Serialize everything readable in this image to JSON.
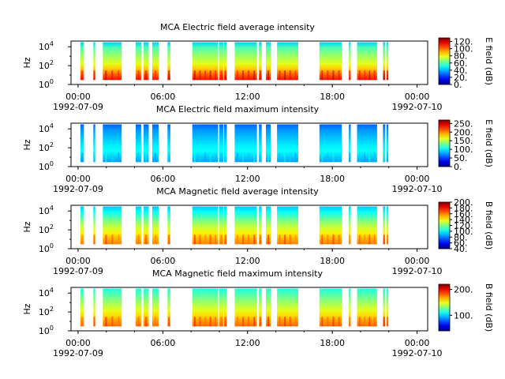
{
  "chart_data": [
    {
      "type": "heatmap",
      "title": "MCA  Electric field average intensity",
      "ylabel": "Hz",
      "y_scale": "log",
      "ylim": [
        1,
        40000
      ],
      "yticks": [
        {
          "base": "10",
          "exp": "0"
        },
        {
          "base": "10",
          "exp": "2"
        },
        {
          "base": "10",
          "exp": "4"
        }
      ],
      "x_range": [
        "1992-07-09 00:00",
        "1992-07-10 00:00"
      ],
      "xticks": [
        "00:00",
        "06:00",
        "12:00",
        "18:00",
        "00:00"
      ],
      "xtick_dates": [
        "1992-07-09",
        "1992-07-10"
      ],
      "colorbar": {
        "label": "E field (dB)",
        "range": [
          0,
          130
        ],
        "ticks": [
          "0.",
          "20.",
          "40.",
          "60.",
          "80.",
          "100.",
          "120."
        ],
        "colormap": "jet"
      },
      "style": "average_electric"
    },
    {
      "type": "heatmap",
      "title": "MCA  Electric field maximum intensity",
      "ylabel": "Hz",
      "y_scale": "log",
      "ylim": [
        1,
        40000
      ],
      "yticks": [
        {
          "base": "10",
          "exp": "0"
        },
        {
          "base": "10",
          "exp": "2"
        },
        {
          "base": "10",
          "exp": "4"
        }
      ],
      "x_range": [
        "1992-07-09 00:00",
        "1992-07-10 00:00"
      ],
      "xticks": [
        "00:00",
        "06:00",
        "12:00",
        "18:00",
        "00:00"
      ],
      "xtick_dates": [
        "1992-07-09",
        "1992-07-10"
      ],
      "colorbar": {
        "label": "E field (dB)",
        "range": [
          0,
          270
        ],
        "ticks": [
          "0.",
          "50.",
          "100.",
          "150.",
          "200.",
          "250."
        ],
        "colormap": "jet"
      },
      "style": "maximum_electric"
    },
    {
      "type": "heatmap",
      "title": "MCA  Magnetic field average intensity",
      "ylabel": "Hz",
      "y_scale": "log",
      "ylim": [
        1,
        40000
      ],
      "yticks": [
        {
          "base": "10",
          "exp": "0"
        },
        {
          "base": "10",
          "exp": "2"
        },
        {
          "base": "10",
          "exp": "4"
        }
      ],
      "x_range": [
        "1992-07-09 00:00",
        "1992-07-10 00:00"
      ],
      "xticks": [
        "00:00",
        "06:00",
        "12:00",
        "18:00",
        "00:00"
      ],
      "xtick_dates": [
        "1992-07-09",
        "1992-07-10"
      ],
      "colorbar": {
        "label": "B field (dB)",
        "range": [
          40,
          200
        ],
        "ticks": [
          "40.",
          "60.",
          "80.",
          "100.",
          "120.",
          "140.",
          "160.",
          "180.",
          "200."
        ],
        "colormap": "jet"
      },
      "style": "average_magnetic"
    },
    {
      "type": "heatmap",
      "title": "MCA  Magnetic field maximum intensity",
      "ylabel": "Hz",
      "y_scale": "log",
      "ylim": [
        1,
        40000
      ],
      "yticks": [
        {
          "base": "10",
          "exp": "0"
        },
        {
          "base": "10",
          "exp": "2"
        },
        {
          "base": "10",
          "exp": "4"
        }
      ],
      "x_range": [
        "1992-07-09 00:00",
        "1992-07-10 00:00"
      ],
      "xticks": [
        "00:00",
        "06:00",
        "12:00",
        "18:00",
        "00:00"
      ],
      "xtick_dates": [
        "1992-07-09",
        "1992-07-10"
      ],
      "colorbar": {
        "label": "B field (dB)",
        "range": [
          40,
          220
        ],
        "ticks": [
          "100.",
          "200."
        ],
        "colormap": "jet"
      },
      "style": "maximum_magnetic"
    }
  ],
  "data_segments_utc": [
    [
      "00:10",
      "00:25"
    ],
    [
      "01:05",
      "01:13"
    ],
    [
      "01:45",
      "03:05"
    ],
    [
      "04:05",
      "04:28"
    ],
    [
      "04:38",
      "05:00"
    ],
    [
      "05:15",
      "05:42"
    ],
    [
      "06:20",
      "06:32"
    ],
    [
      "08:05",
      "09:55"
    ],
    [
      "10:00",
      "10:17"
    ],
    [
      "10:20",
      "10:32"
    ],
    [
      "11:05",
      "12:40"
    ],
    [
      "12:48",
      "13:00"
    ],
    [
      "13:18",
      "13:38"
    ],
    [
      "14:05",
      "15:35"
    ],
    [
      "17:05",
      "18:40"
    ],
    [
      "19:10",
      "19:18"
    ],
    [
      "19:45",
      "21:10"
    ],
    [
      "21:35",
      "21:45"
    ],
    [
      "21:50",
      "21:58"
    ]
  ]
}
